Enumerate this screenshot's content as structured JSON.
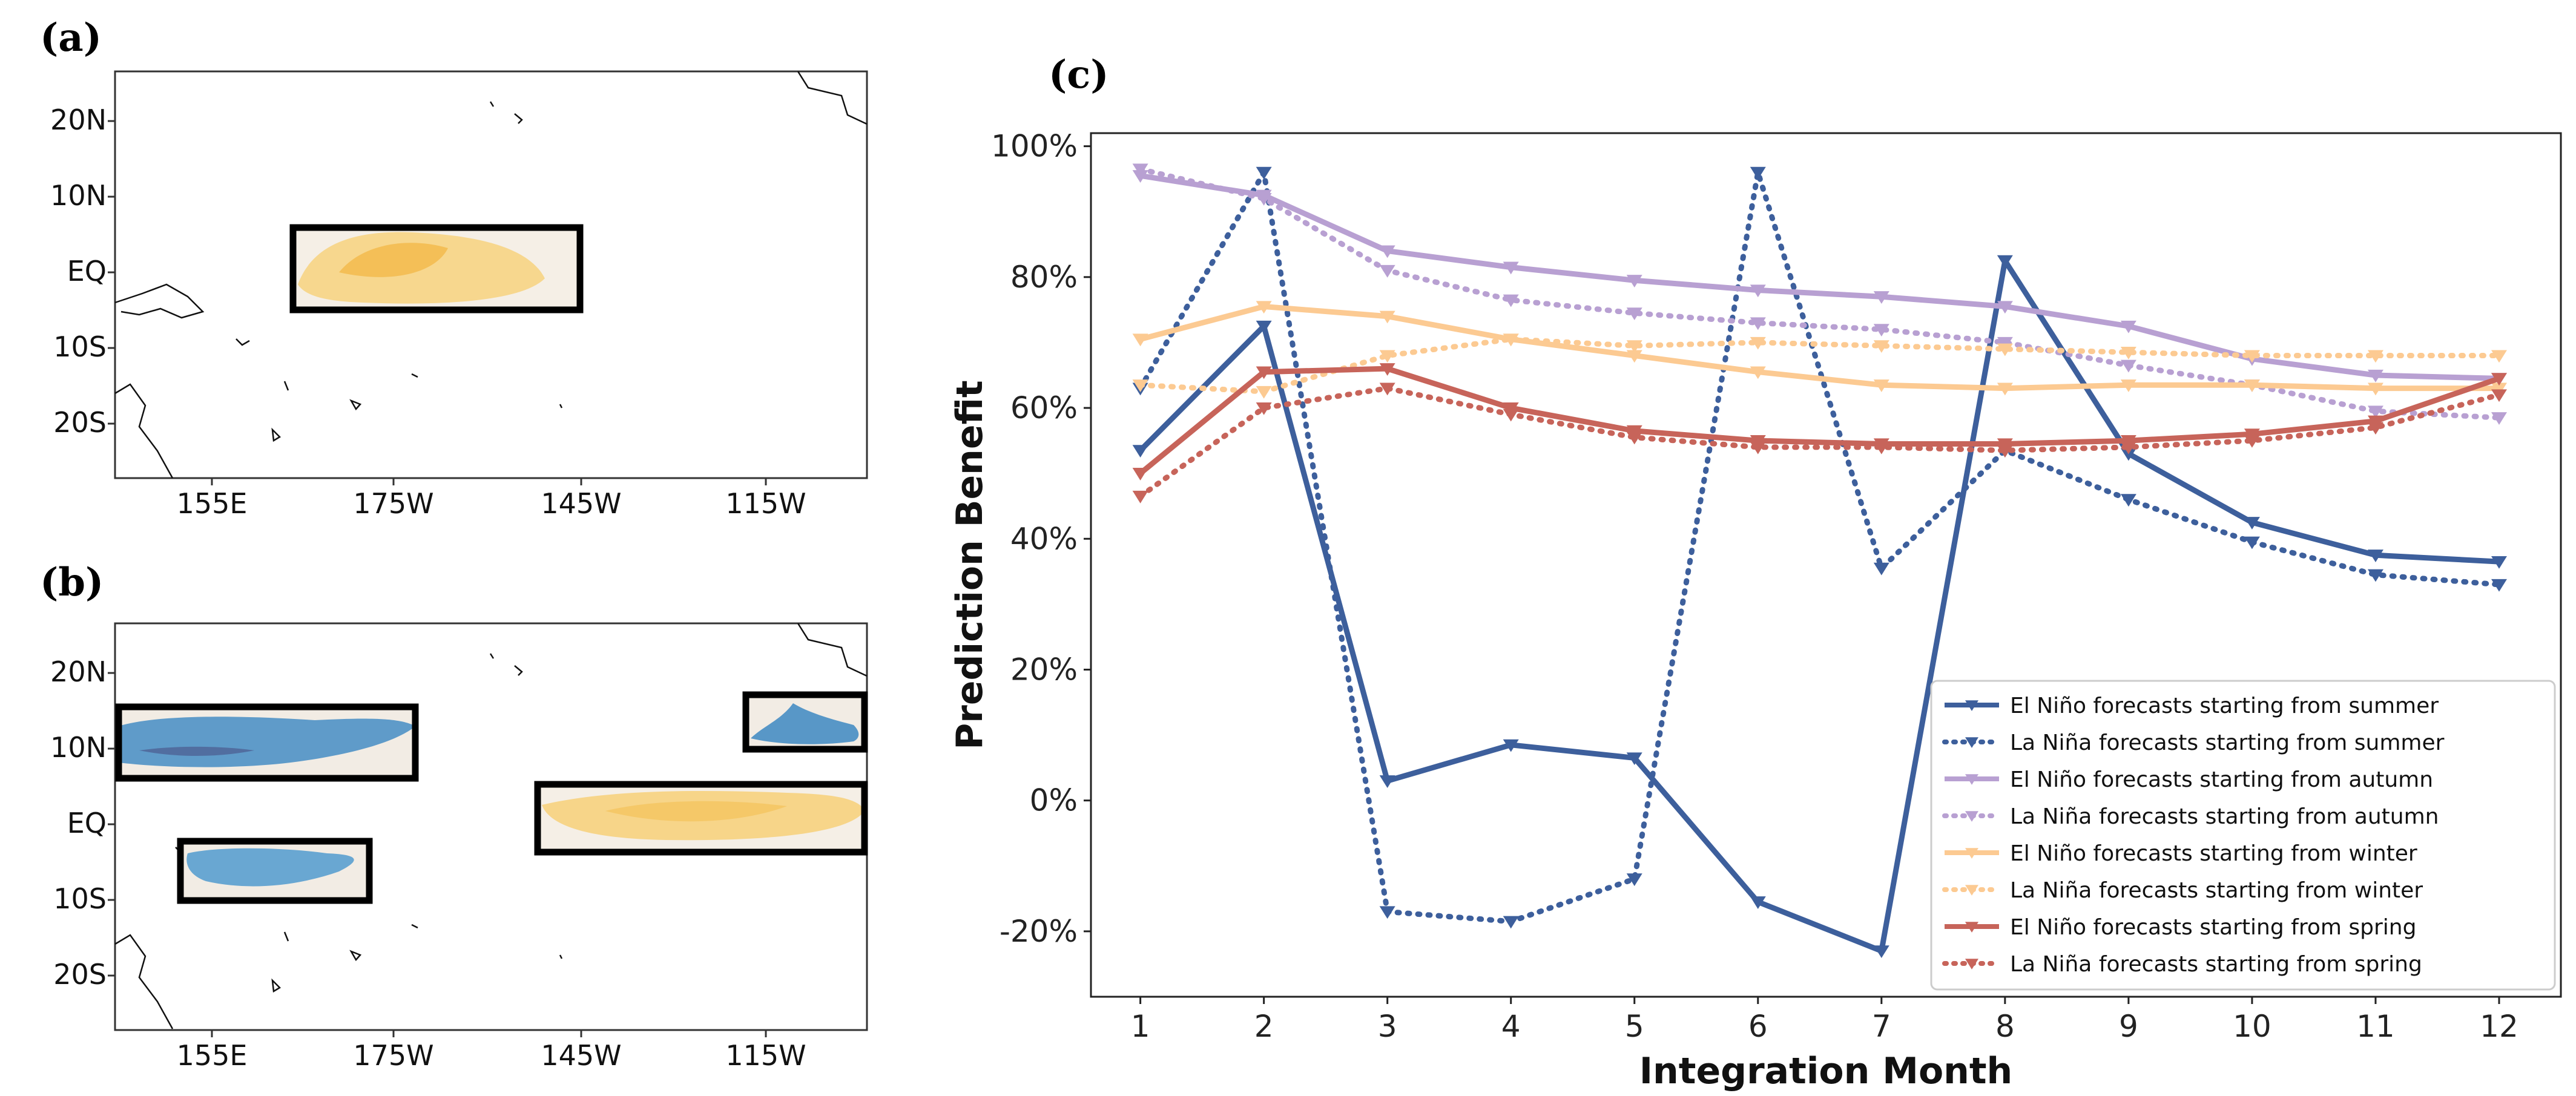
{
  "panels": {
    "a": {
      "label": "(a)",
      "lat_labels": [
        "20N",
        "10N",
        "EQ",
        "10S",
        "20S"
      ],
      "lon_labels": [
        "155E",
        "175W",
        "145W",
        "115W"
      ]
    },
    "b": {
      "label": "(b)",
      "lat_labels": [
        "20N",
        "10N",
        "EQ",
        "10S",
        "20S"
      ],
      "lon_labels": [
        "155E",
        "175W",
        "145W",
        "115W"
      ]
    },
    "c": {
      "label": "(c)"
    }
  },
  "colors": {
    "blue": "#3d5f9c",
    "purple": "#b8a0d2",
    "orange": "#fcca92",
    "red": "#c7645a",
    "warm_fill": "#f6c154",
    "cool_fill": "#4f92c5"
  },
  "chart_data": {
    "type": "line",
    "title": "",
    "xlabel": "Integration Month",
    "ylabel": "Prediction Benefit",
    "x": [
      1,
      2,
      3,
      4,
      5,
      6,
      7,
      8,
      9,
      10,
      11,
      12
    ],
    "xlim": [
      0.6,
      12.5
    ],
    "ylim": [
      -30,
      102
    ],
    "yticks": [
      -20,
      0,
      20,
      40,
      60,
      80,
      100
    ],
    "ytick_labels": [
      "-20%",
      "0%",
      "20%",
      "40%",
      "60%",
      "80%",
      "100%"
    ],
    "legend_position": "lower-right",
    "series": [
      {
        "name": "El Niño forecasts starting from summer",
        "color": "#3d5f9c",
        "style": "solid",
        "values": [
          53.5,
          72.5,
          3,
          8.5,
          6.5,
          -15.5,
          -23,
          82.5,
          53,
          42.5,
          37.5,
          36.5
        ]
      },
      {
        "name": "La Niña forecasts starting from summer",
        "color": "#3d5f9c",
        "style": "dotted",
        "values": [
          63,
          96,
          -17,
          -18.5,
          -12,
          96,
          35.5,
          53.5,
          46,
          39.5,
          34.5,
          33
        ]
      },
      {
        "name": "El Niño forecasts starting from autumn",
        "color": "#b8a0d2",
        "style": "solid",
        "values": [
          95.5,
          92.5,
          84,
          81.5,
          79.5,
          78,
          77,
          75.5,
          72.5,
          67.5,
          65,
          64.5
        ]
      },
      {
        "name": "La Niña forecasts starting from autumn",
        "color": "#b8a0d2",
        "style": "dotted",
        "values": [
          96.5,
          92,
          81,
          76.5,
          74.5,
          73,
          72,
          70,
          66.5,
          63.5,
          59.5,
          58.5
        ]
      },
      {
        "name": "El Niño forecasts starting from winter",
        "color": "#fcca92",
        "style": "solid",
        "values": [
          70.5,
          75.5,
          74,
          70.5,
          68,
          65.5,
          63.5,
          63,
          63.5,
          63.5,
          63,
          63
        ]
      },
      {
        "name": "La Niña forecasts starting from winter",
        "color": "#fcca92",
        "style": "dotted",
        "values": [
          63.5,
          62.5,
          68,
          70.5,
          69.5,
          70,
          69.5,
          69,
          68.5,
          68,
          68,
          68
        ]
      },
      {
        "name": "El Niño forecasts starting from spring",
        "color": "#c7645a",
        "style": "solid",
        "values": [
          50,
          65.5,
          66,
          60,
          56.5,
          55,
          54.5,
          54.5,
          55,
          56,
          58,
          64.5
        ]
      },
      {
        "name": "La Niña forecasts starting from spring",
        "color": "#c7645a",
        "style": "dotted",
        "values": [
          46.5,
          60,
          63,
          59,
          55.5,
          54,
          54,
          53.5,
          54,
          55,
          57,
          62
        ]
      }
    ]
  }
}
